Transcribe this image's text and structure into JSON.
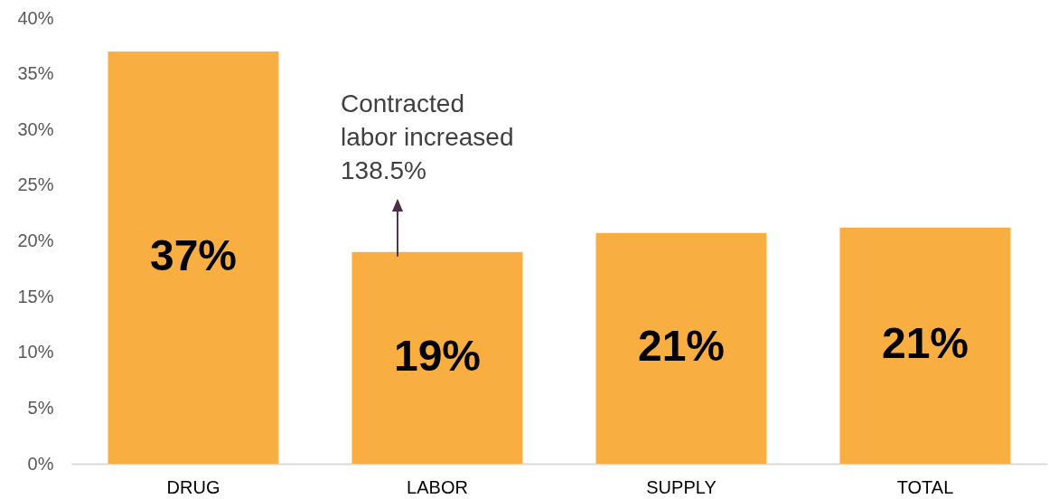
{
  "chart_data": {
    "type": "bar",
    "categories": [
      "DRUG",
      "LABOR",
      "SUPPLY",
      "TOTAL"
    ],
    "values": [
      37,
      19,
      20.7,
      21.2
    ],
    "color": "#f9ae42",
    "value_labels": [
      "37%",
      "19%",
      "21%",
      "21%"
    ],
    "ylim": [
      0,
      40
    ],
    "yticks": [
      {
        "value": 0,
        "label": "0%"
      },
      {
        "value": 5,
        "label": "5%"
      },
      {
        "value": 10,
        "label": "10%"
      },
      {
        "value": 15,
        "label": "15%"
      },
      {
        "value": 20,
        "label": "20%"
      },
      {
        "value": 25,
        "label": "25%"
      },
      {
        "value": 30,
        "label": "30%"
      },
      {
        "value": 35,
        "label": "35%"
      },
      {
        "value": 40,
        "label": "40%"
      }
    ],
    "grid": false,
    "annotations": [
      {
        "text": "Contracted\nlabor increased\n138.5%",
        "x": "LABOR",
        "y": 19
      }
    ]
  }
}
